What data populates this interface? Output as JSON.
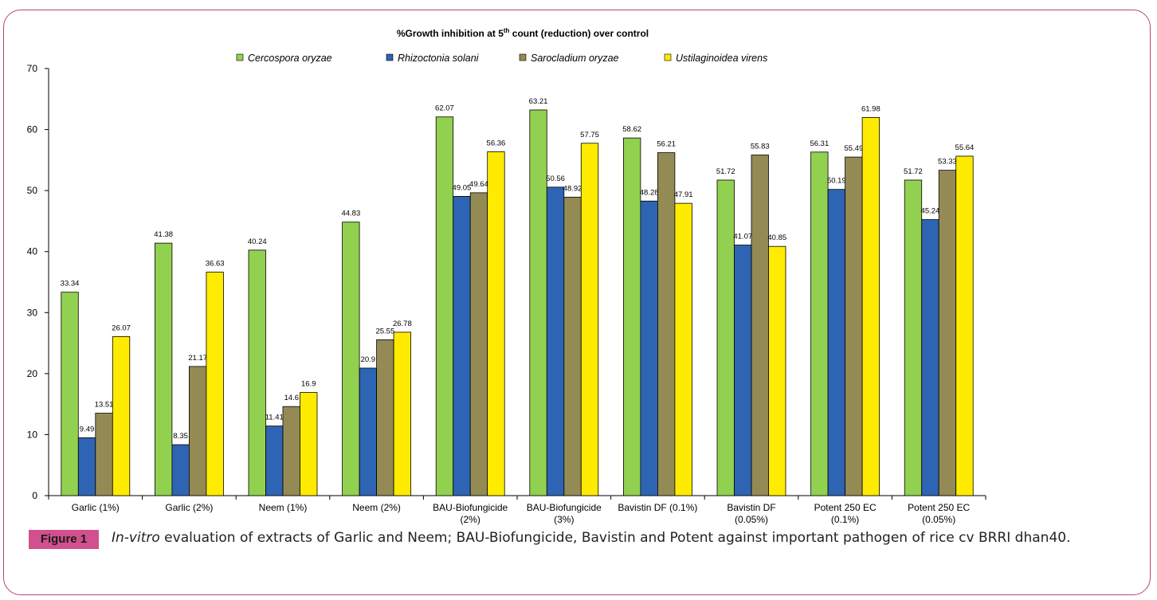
{
  "chart_data": {
    "type": "bar",
    "title": "%Growth inhibition at 5",
    "title_sup": "th",
    "title_rest": " count (reduction) over control",
    "xlabel": "",
    "ylabel": "",
    "ylim": [
      0,
      70
    ],
    "yticks": [
      0,
      10,
      20,
      30,
      40,
      50,
      60,
      70
    ],
    "grid": false,
    "legend": "top",
    "categories": [
      [
        "Garlic (1%)"
      ],
      [
        "Garlic (2%)"
      ],
      [
        "Neem (1%)"
      ],
      [
        "Neem (2%)"
      ],
      [
        "BAU-Biofungicide",
        "(2%)"
      ],
      [
        "BAU-Biofungicide",
        "(3%)"
      ],
      [
        "Bavistin DF (0.1%)"
      ],
      [
        "Bavistin DF",
        "(0.05%)"
      ],
      [
        "Potent 250 EC",
        "(0.1%)"
      ],
      [
        "Potent 250 EC",
        "(0.05%)"
      ]
    ],
    "series": [
      {
        "name": "Cercospora oryzae",
        "color": "#92d050",
        "values": [
          33.34,
          41.38,
          40.24,
          44.83,
          62.07,
          63.21,
          58.62,
          51.72,
          56.31,
          51.72
        ],
        "labels": [
          "33.34",
          "41.38",
          "40.24",
          "44.83",
          "62.07",
          "63.21",
          "58.62",
          "51.72",
          "56.31",
          "51.72"
        ]
      },
      {
        "name": "Rhizoctonia solani",
        "color": "#2e64b4",
        "values": [
          9.49,
          8.35,
          11.41,
          20.9,
          49.05,
          50.56,
          48.28,
          41.07,
          50.19,
          45.24
        ],
        "labels": [
          "9.49",
          "8.35",
          "11.41",
          "20.9",
          "49.05",
          "50.56",
          "48.28",
          "41.07",
          "50.19",
          "45.24"
        ]
      },
      {
        "name": "Sarocladium oryzae",
        "color": "#948a54",
        "values": [
          13.51,
          21.17,
          14.6,
          25.55,
          49.64,
          48.92,
          56.21,
          55.83,
          55.49,
          53.33
        ],
        "labels": [
          "13.51",
          "21.17",
          "14.6",
          "25.55",
          "49.64",
          "48.92",
          "56.21",
          "55.83",
          "55.49",
          "53.33"
        ]
      },
      {
        "name": "Ustilaginoidea virens",
        "color": "#ffeb00",
        "values": [
          26.07,
          36.63,
          16.9,
          26.78,
          56.36,
          57.75,
          47.91,
          40.85,
          61.98,
          55.64
        ],
        "labels": [
          "26.07",
          "36.63",
          "16.9",
          "26.78",
          "56.36",
          "57.75",
          "47.91",
          "40.85",
          "61.98",
          "55.64"
        ]
      }
    ]
  },
  "caption": {
    "label": "Figure 1",
    "text_italic": "In-vitro",
    "text_rest": " evaluation of extracts of Garlic and Neem; BAU-Biofungicide, Bavistin and Potent against important pathogen of rice cv BRRI dhan40."
  }
}
